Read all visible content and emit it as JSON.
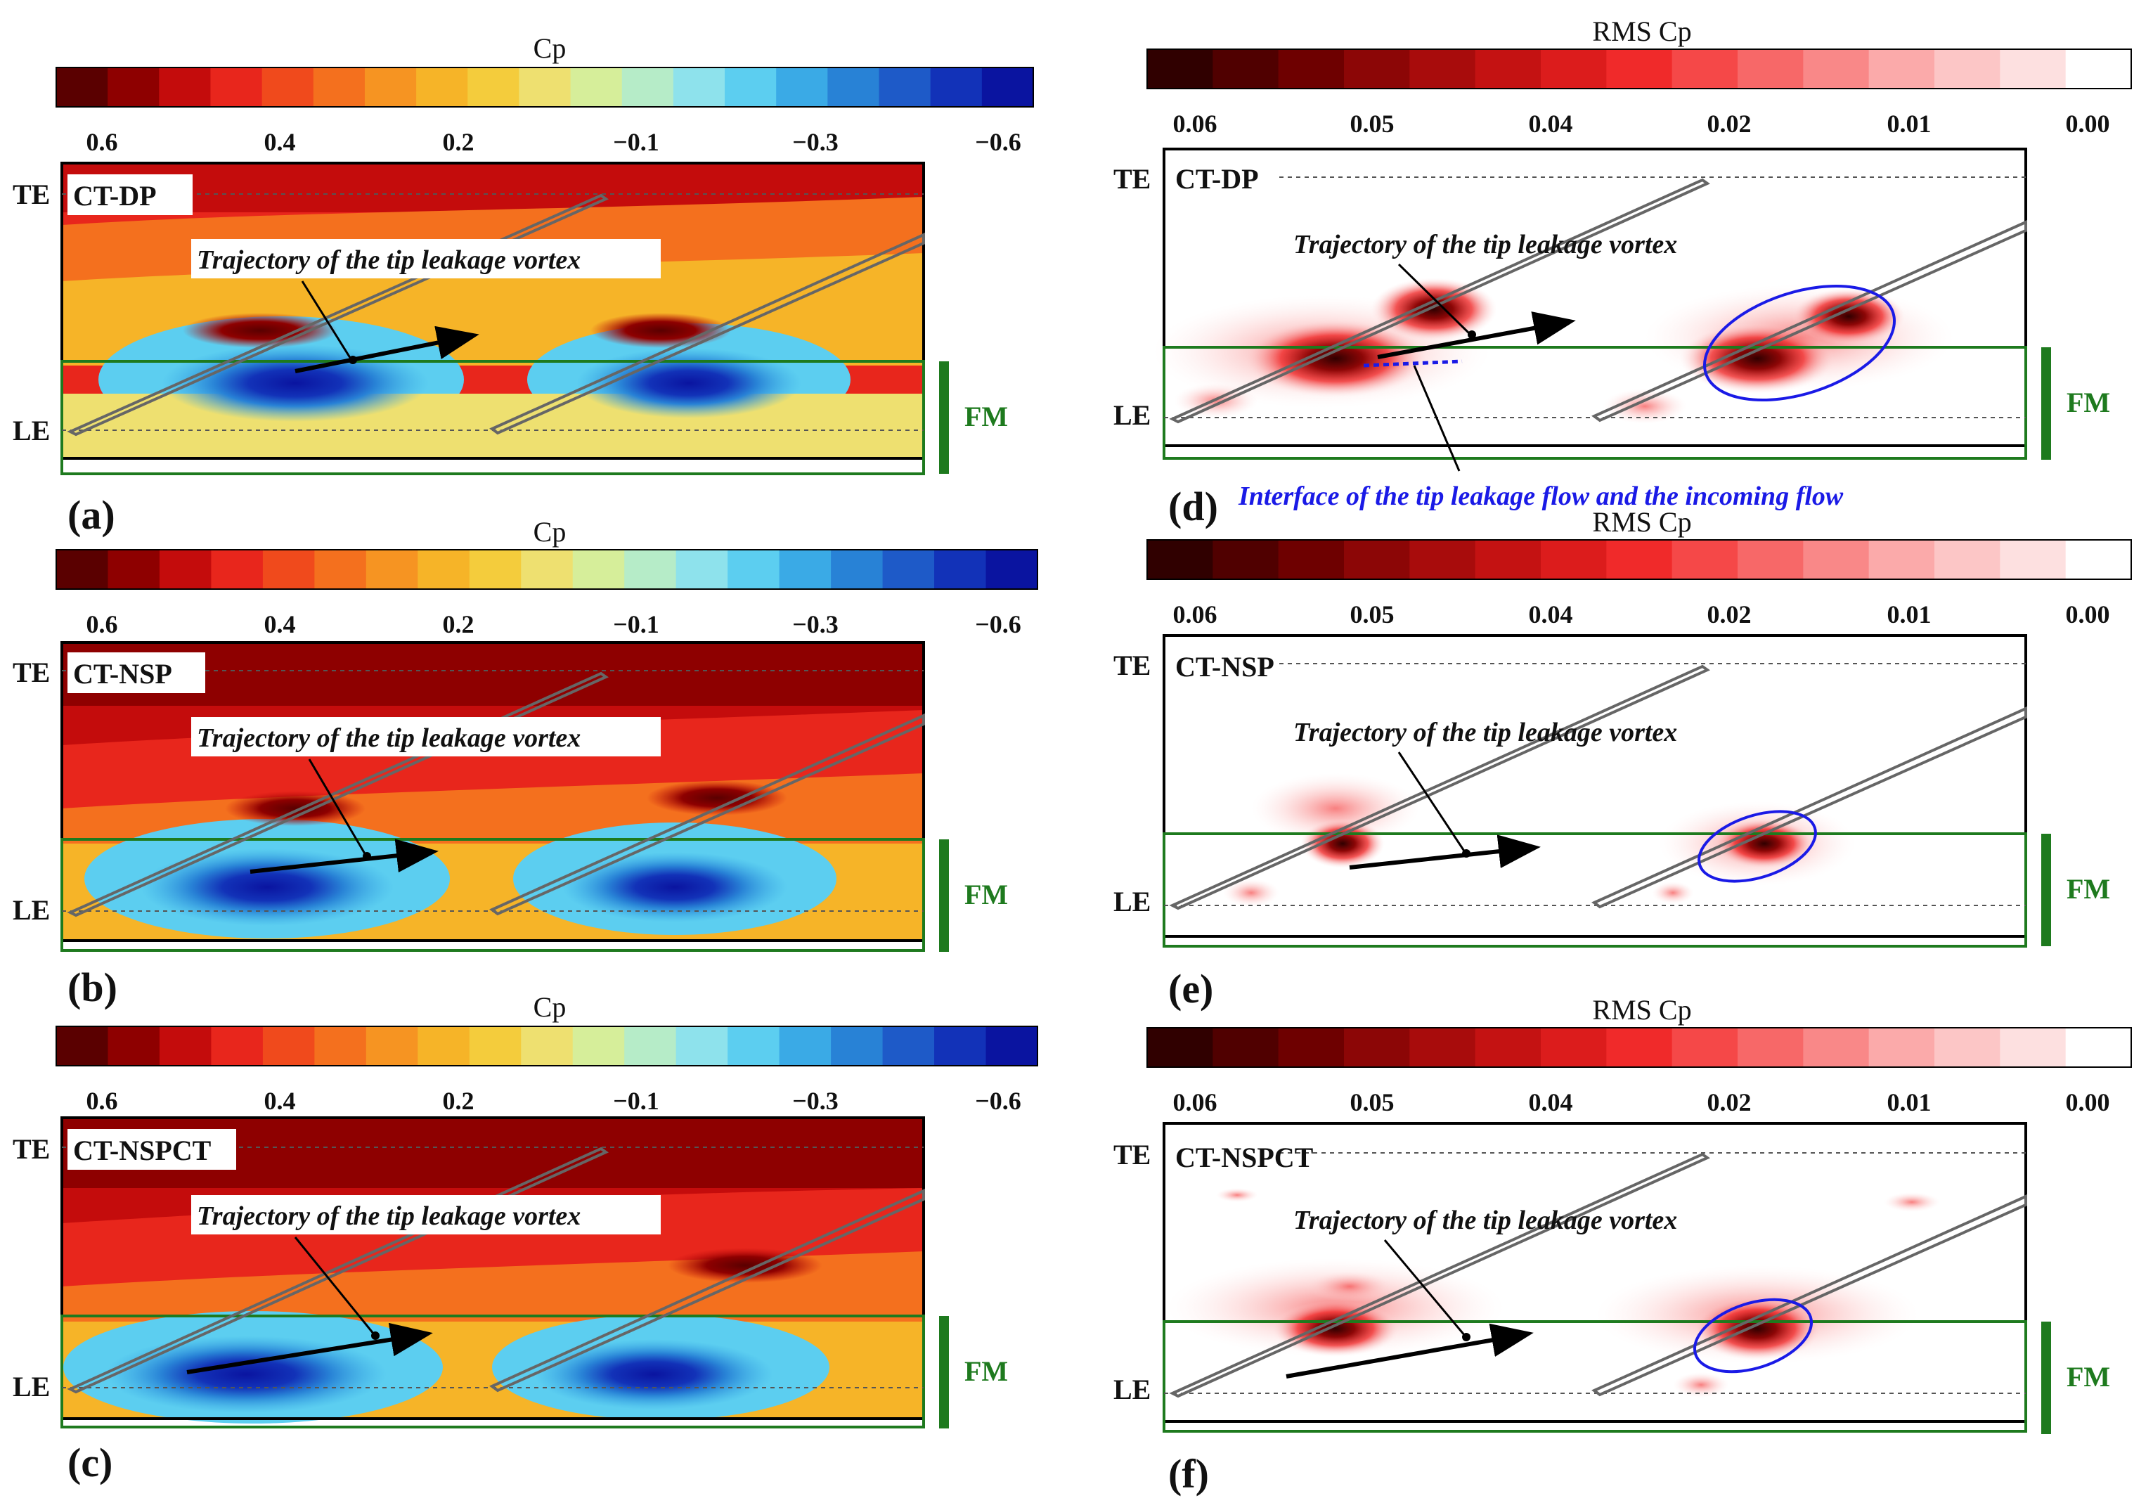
{
  "chart_data": [
    {
      "id": "a",
      "type": "heatmap",
      "panel_label": "(a)",
      "colorbar_title": "Cp",
      "colorbar_ticks": [
        "0.6",
        "0.4",
        "0.2",
        "−0.1",
        "−0.3",
        "−0.6"
      ],
      "case": "CT-DP",
      "te_label": "TE",
      "le_label": "LE",
      "fm_label": "FM",
      "annotation": "Trajectory of the tip leakage vortex"
    },
    {
      "id": "b",
      "type": "heatmap",
      "panel_label": "(b)",
      "colorbar_title": "Cp",
      "colorbar_ticks": [
        "0.6",
        "0.4",
        "0.2",
        "−0.1",
        "−0.3",
        "−0.6"
      ],
      "case": "CT-NSP",
      "te_label": "TE",
      "le_label": "LE",
      "fm_label": "FM",
      "annotation": "Trajectory of the tip leakage vortex"
    },
    {
      "id": "c",
      "type": "heatmap",
      "panel_label": "(c)",
      "colorbar_title": "Cp",
      "colorbar_ticks": [
        "0.6",
        "0.4",
        "0.2",
        "−0.1",
        "−0.3",
        "−0.6"
      ],
      "case": "CT-NSPCT",
      "te_label": "TE",
      "le_label": "LE",
      "fm_label": "FM",
      "annotation": "Trajectory of the tip leakage vortex"
    },
    {
      "id": "d",
      "type": "heatmap",
      "panel_label": "(d)",
      "colorbar_title": "RMS Cp",
      "colorbar_ticks": [
        "0.06",
        "0.05",
        "0.04",
        "0.02",
        "0.01",
        "0.00"
      ],
      "case": "CT-DP",
      "te_label": "TE",
      "le_label": "LE",
      "fm_label": "FM",
      "annotation": "Trajectory of the tip leakage vortex",
      "interface_note": "Interface of the tip leakage flow and the incoming flow"
    },
    {
      "id": "e",
      "type": "heatmap",
      "panel_label": "(e)",
      "colorbar_title": "RMS Cp",
      "colorbar_ticks": [
        "0.06",
        "0.05",
        "0.04",
        "0.02",
        "0.01",
        "0.00"
      ],
      "case": "CT-NSP",
      "te_label": "TE",
      "le_label": "LE",
      "fm_label": "FM",
      "annotation": "Trajectory of the tip leakage vortex"
    },
    {
      "id": "f",
      "type": "heatmap",
      "panel_label": "(f)",
      "colorbar_title": "RMS Cp",
      "colorbar_ticks": [
        "0.06",
        "0.05",
        "0.04",
        "0.02",
        "0.01",
        "0.00"
      ],
      "case": "CT-NSPCT",
      "te_label": "TE",
      "le_label": "LE",
      "fm_label": "FM",
      "annotation": "Trajectory of the tip leakage vortex"
    }
  ],
  "colors": {
    "cp_scale": [
      "#5a0000",
      "#8e0000",
      "#c40c0c",
      "#e8261c",
      "#f04a1c",
      "#f4701e",
      "#f69422",
      "#f6b428",
      "#f4cc3c",
      "#eee070",
      "#d6ee9a",
      "#b6ecc8",
      "#8ee2ec",
      "#5ccef0",
      "#3aaae6",
      "#2882d6",
      "#1e5ac8",
      "#1232b8",
      "#0a14a0"
    ],
    "rms_scale": [
      "#300000",
      "#500000",
      "#6e0000",
      "#8c0606",
      "#a80c0c",
      "#c41212",
      "#dc1c1c",
      "#f02a2a",
      "#f54848",
      "#f76868",
      "#f98888",
      "#fbaaaa",
      "#fcc6c6",
      "#fde0e0",
      "#ffffff"
    ],
    "fm_green": "#1e7a1e",
    "vortex_ellipse": "#1a1ae6"
  }
}
